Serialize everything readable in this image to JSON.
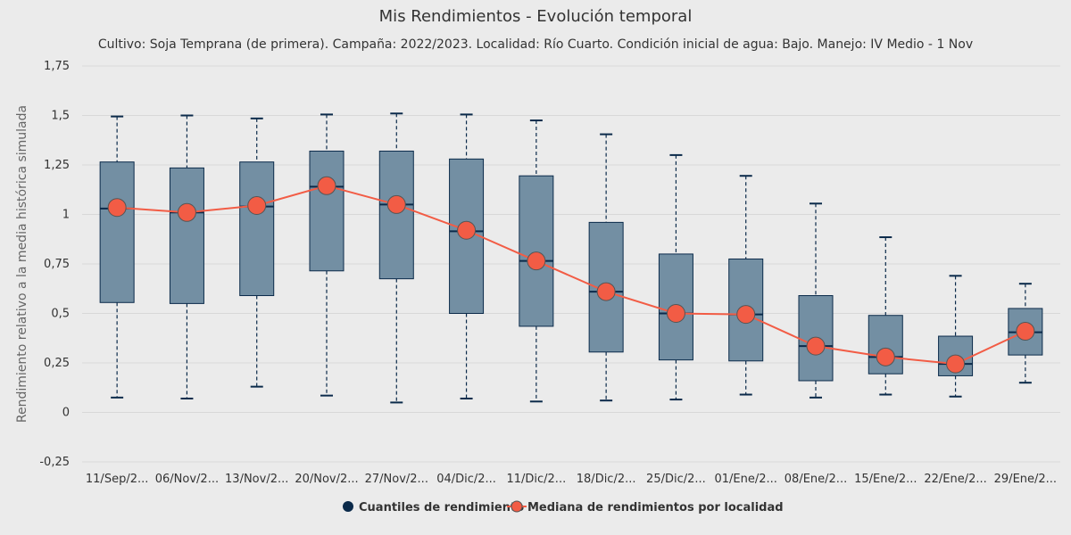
{
  "chart_data": {
    "type": "boxplot+line",
    "title": "Mis Rendimientos - Evolución temporal",
    "subtitle": "Cultivo: Soja Temprana (de primera). Campaña: 2022/2023. Localidad: Río Cuarto. Condición inicial de agua: Bajo. Manejo: IV Medio - 1 Nov",
    "ylabel": "Rendimiento relativo a la media histórica simulada",
    "xlabel": "",
    "ylim": [
      -0.25,
      1.75
    ],
    "yticks": [
      -0.25,
      0,
      0.25,
      0.5,
      0.75,
      1,
      1.25,
      1.5,
      1.75
    ],
    "ytick_labels": [
      "-0,25",
      "0",
      "0,25",
      "0,5",
      "0,75",
      "1",
      "1,25",
      "1,5",
      "1,75"
    ],
    "categories": [
      "11/Sep/2...",
      "06/Nov/2...",
      "13/Nov/2...",
      "20/Nov/2...",
      "27/Nov/2...",
      "04/Dic/2...",
      "11/Dic/2...",
      "18/Dic/2...",
      "25/Dic/2...",
      "01/Ene/2...",
      "08/Ene/2...",
      "15/Ene/2...",
      "22/Ene/2...",
      "29/Ene/2..."
    ],
    "grid": true,
    "legend_position": "bottom",
    "series": [
      {
        "name": "Cuantiles de rendimiento",
        "type": "boxplot",
        "color": "#0b2a4a",
        "fill": "#738fa3",
        "boxes": [
          {
            "low": 0.075,
            "q1": 0.555,
            "median": 1.03,
            "q3": 1.265,
            "high": 1.495
          },
          {
            "low": 0.07,
            "q1": 0.55,
            "median": 1.01,
            "q3": 1.235,
            "high": 1.5
          },
          {
            "low": 0.13,
            "q1": 0.59,
            "median": 1.04,
            "q3": 1.265,
            "high": 1.485
          },
          {
            "low": 0.085,
            "q1": 0.715,
            "median": 1.14,
            "q3": 1.32,
            "high": 1.505
          },
          {
            "low": 0.05,
            "q1": 0.675,
            "median": 1.05,
            "q3": 1.32,
            "high": 1.51
          },
          {
            "low": 0.07,
            "q1": 0.5,
            "median": 0.915,
            "q3": 1.28,
            "high": 1.505
          },
          {
            "low": 0.055,
            "q1": 0.435,
            "median": 0.765,
            "q3": 1.195,
            "high": 1.475
          },
          {
            "low": 0.06,
            "q1": 0.305,
            "median": 0.61,
            "q3": 0.96,
            "high": 1.405
          },
          {
            "low": 0.065,
            "q1": 0.265,
            "median": 0.5,
            "q3": 0.8,
            "high": 1.3
          },
          {
            "low": 0.09,
            "q1": 0.26,
            "median": 0.495,
            "q3": 0.775,
            "high": 1.195
          },
          {
            "low": 0.075,
            "q1": 0.16,
            "median": 0.335,
            "q3": 0.59,
            "high": 1.055
          },
          {
            "low": 0.09,
            "q1": 0.195,
            "median": 0.28,
            "q3": 0.49,
            "high": 0.885
          },
          {
            "low": 0.08,
            "q1": 0.185,
            "median": 0.245,
            "q3": 0.385,
            "high": 0.69
          },
          {
            "low": 0.15,
            "q1": 0.29,
            "median": 0.405,
            "q3": 0.525,
            "high": 0.65
          }
        ]
      },
      {
        "name": "Mediana de rendimientos por localidad",
        "type": "line",
        "color": "#f25c45",
        "values": [
          1.035,
          1.01,
          1.045,
          1.145,
          1.05,
          0.92,
          0.765,
          0.61,
          0.5,
          0.495,
          0.335,
          0.28,
          0.245,
          0.41
        ]
      }
    ]
  }
}
